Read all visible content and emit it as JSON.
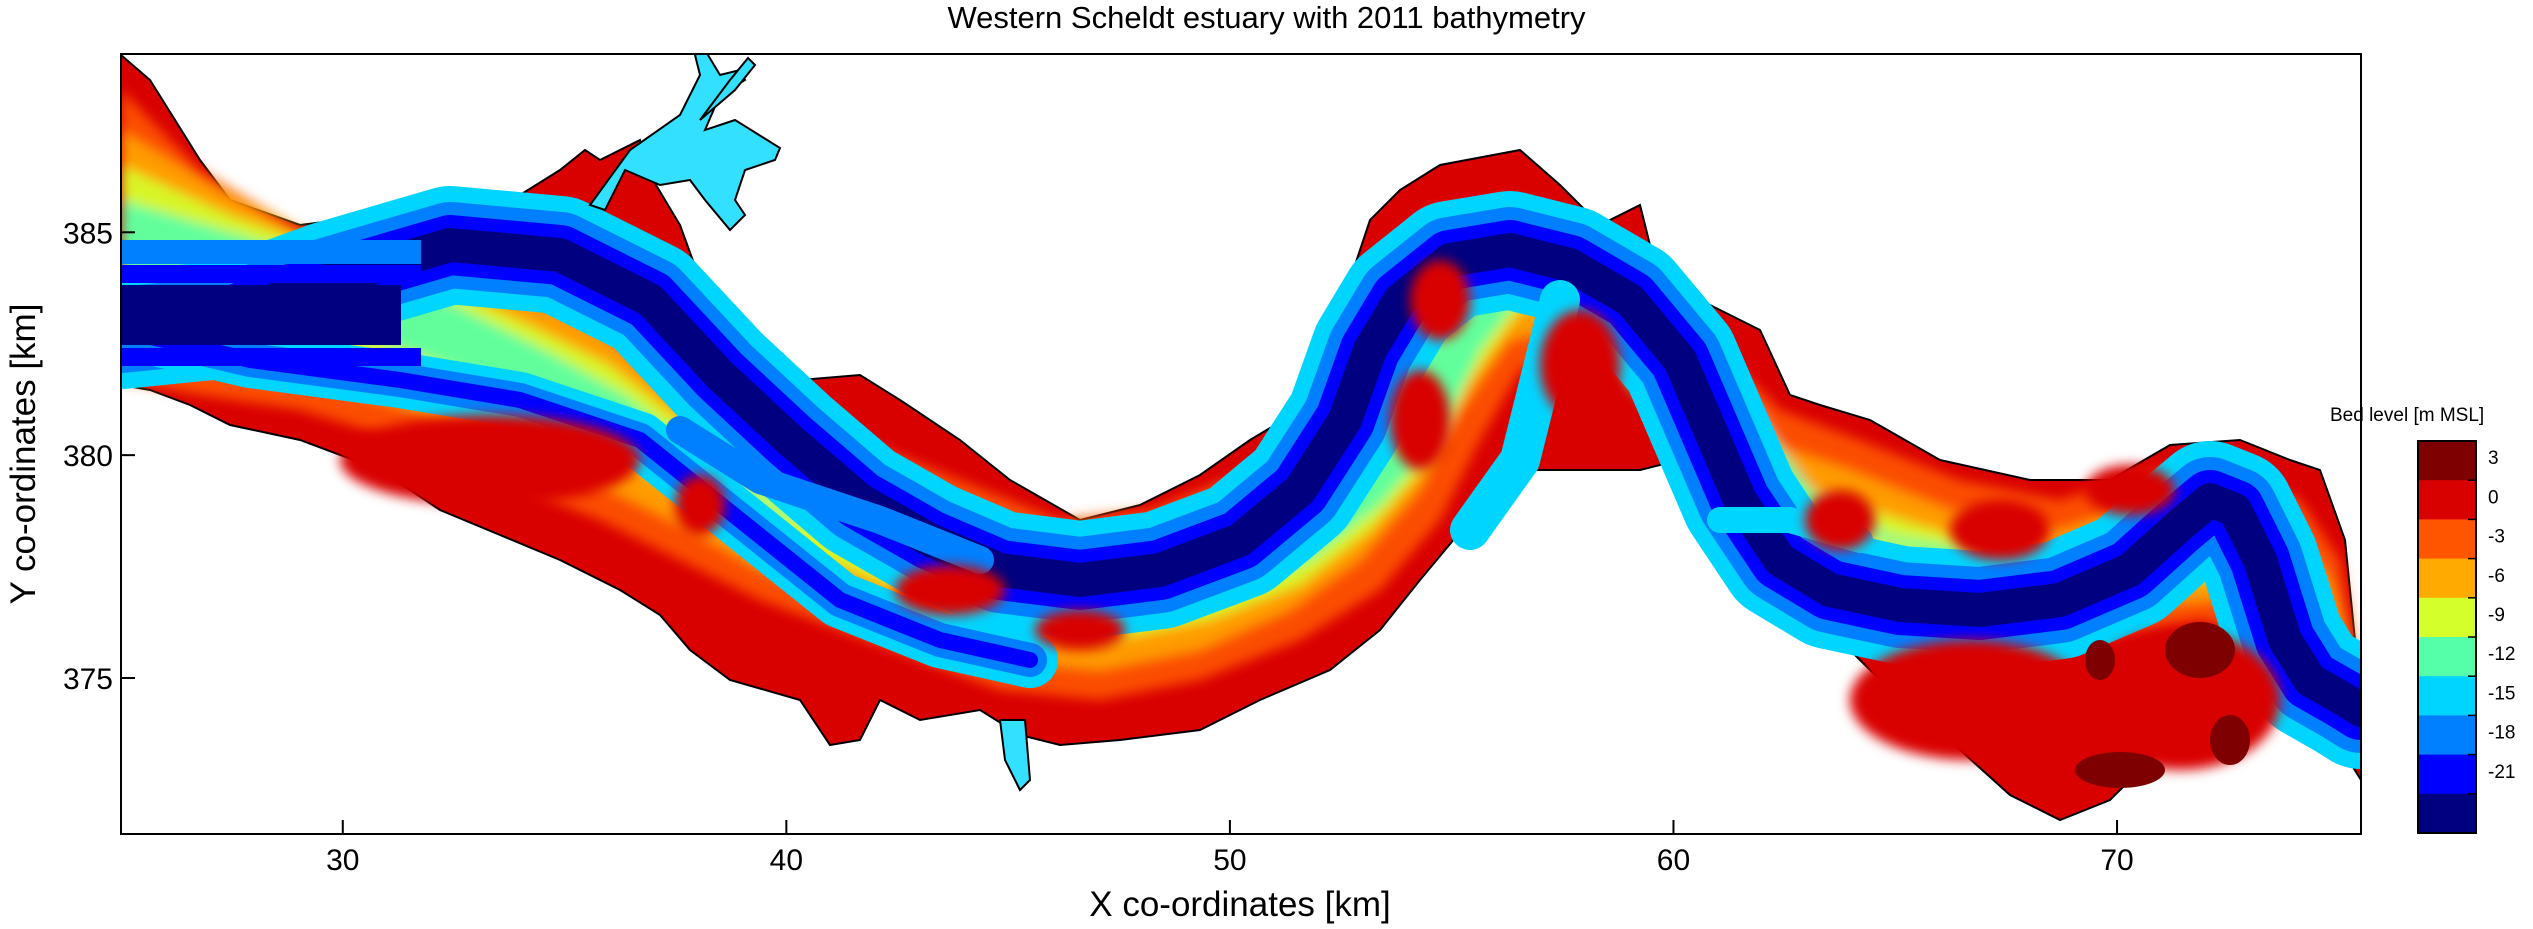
{
  "figure": {
    "title": "Western Scheldt estuary with 2011 bathymetry",
    "xlabel": "X co-ordinates [km]",
    "ylabel": "Y co-ordinates [km]"
  },
  "map_data": {
    "type": "filled-contour-map",
    "x_ticks": [
      30,
      40,
      50,
      60,
      70
    ],
    "y_ticks": [
      375,
      380,
      385
    ],
    "xlim": [
      25,
      75.5
    ],
    "ylim": [
      371.5,
      389
    ],
    "colorbar": {
      "title": "Bed level [m MSL]",
      "tick_labels": [
        "3",
        "0",
        "-3",
        "-6",
        "-9",
        "-12",
        "-15",
        "-18",
        "-21"
      ],
      "bins": [
        {
          "color": "#7f0000"
        },
        {
          "color": "#d90000"
        },
        {
          "color": "#ff5500"
        },
        {
          "color": "#ffaa00"
        },
        {
          "color": "#d4ff2a"
        },
        {
          "color": "#55ffaa"
        },
        {
          "color": "#00d5ff"
        },
        {
          "color": "#0080ff"
        },
        {
          "color": "#0000ff"
        },
        {
          "color": "#000080"
        }
      ]
    },
    "estuary_colors": {
      "channel_deep": "#000080",
      "channel": "#0000ff",
      "channel_edge": "#0080ff",
      "mid": "#00d5ff",
      "shoal": "#55ffaa",
      "shallow": "#d4ff2a",
      "flat": "#ffaa00",
      "intertidal": "#ff5500",
      "high": "#d90000",
      "marsh": "#7f0000",
      "harbour": "#33e0ff"
    }
  }
}
